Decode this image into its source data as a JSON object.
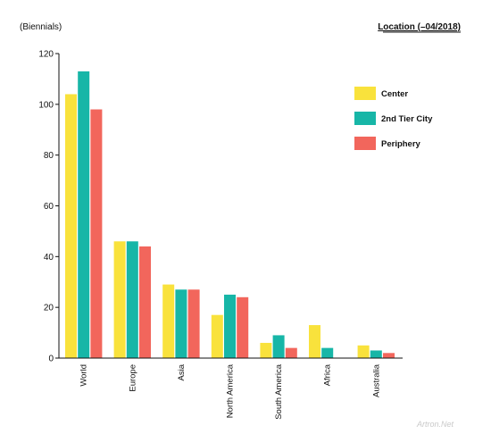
{
  "header": {
    "unit_label": "(Biennials)",
    "location_label": "Location (–04/2018)"
  },
  "watermark": "Artron.Net",
  "colors": {
    "center": "#f9e23c",
    "tier2": "#17b6a7",
    "periphery": "#f2665c",
    "axis": "#111111"
  },
  "chart_data": {
    "type": "bar",
    "title": "",
    "xlabel": "",
    "ylabel": "(Biennials)",
    "ylim": [
      0,
      120
    ],
    "yticks": [
      0,
      20,
      40,
      60,
      80,
      100,
      120
    ],
    "grid": false,
    "legend_position": "top-right",
    "categories": [
      "World",
      "Europe",
      "Asia",
      "North America",
      "South America",
      "Africa",
      "Australia"
    ],
    "series": [
      {
        "name": "Center",
        "color": "#f9e23c",
        "values": [
          104,
          46,
          29,
          17,
          6,
          13,
          5
        ]
      },
      {
        "name": "2nd Tier City",
        "color": "#17b6a7",
        "values": [
          113,
          46,
          27,
          25,
          9,
          4,
          3
        ]
      },
      {
        "name": "Periphery",
        "color": "#f2665c",
        "values": [
          98,
          44,
          27,
          24,
          4,
          0,
          2
        ]
      }
    ]
  }
}
